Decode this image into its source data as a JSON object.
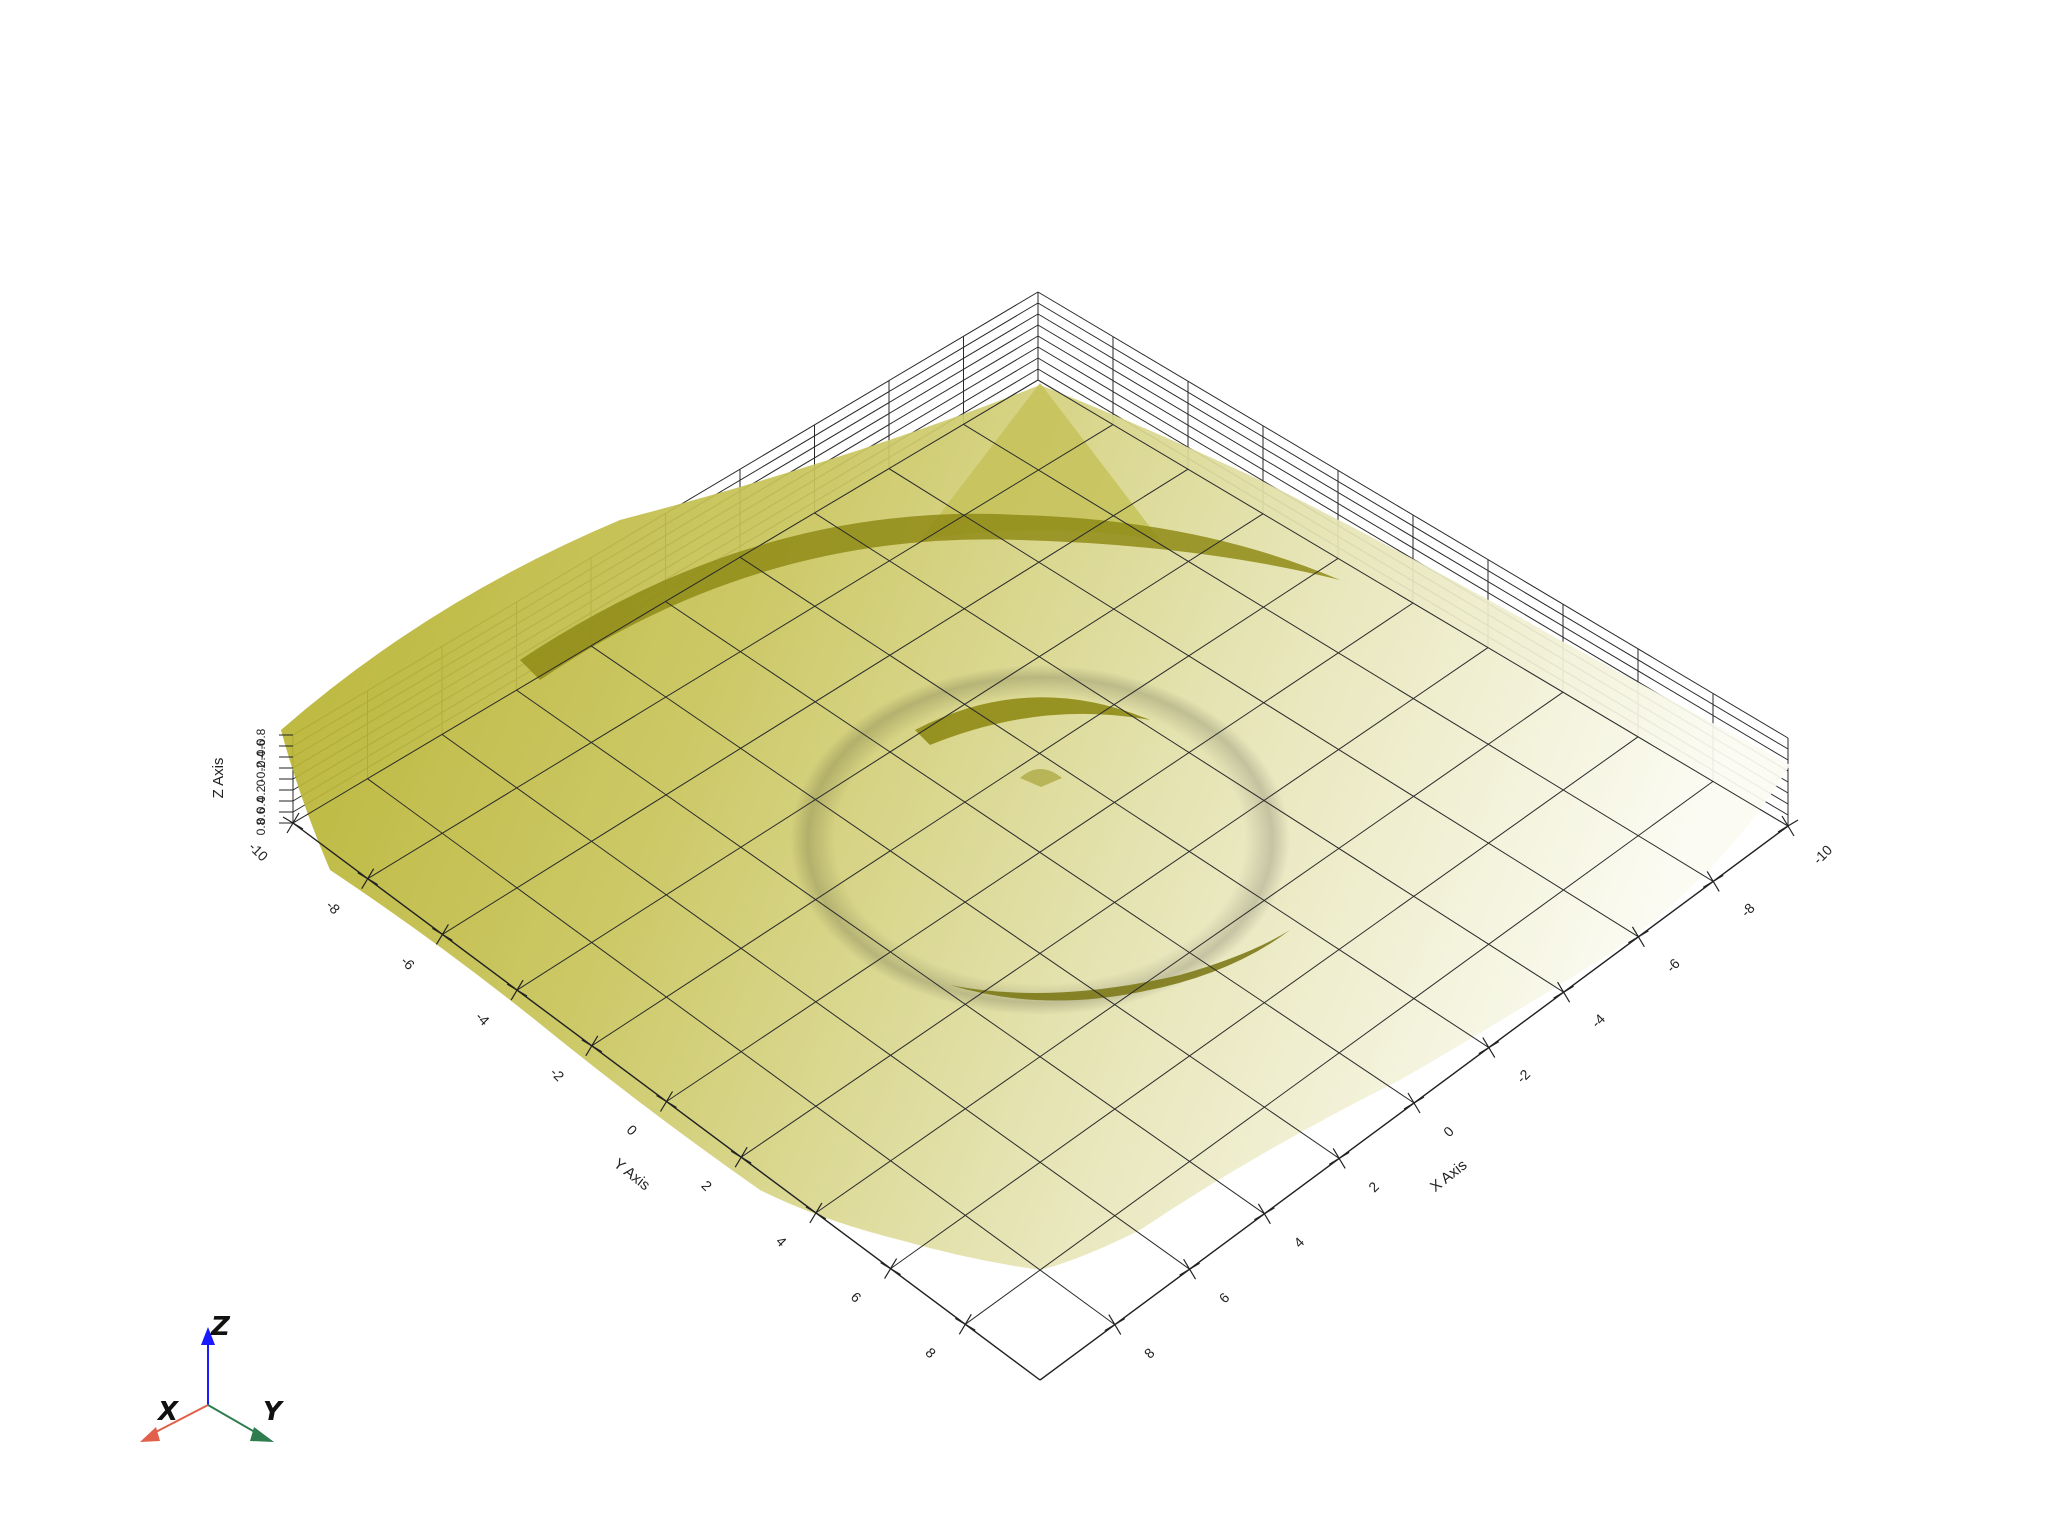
{
  "scene": {
    "background": "#ffffff",
    "surface_color": "#b9b52d",
    "grid_color": "#2a2a2a"
  },
  "axes": {
    "x_title": "X Axis",
    "y_title": "Y Axis",
    "z_title": "Z Axis",
    "x_ticks": [
      "-10",
      "-8",
      "-6",
      "-4",
      "-2",
      "0",
      "2",
      "4",
      "6",
      "8"
    ],
    "y_ticks": [
      "-10",
      "-8",
      "-6",
      "-4",
      "-2",
      "0",
      "2",
      "4",
      "6",
      "8"
    ],
    "z_ticks": [
      "-0.8",
      "-0.6",
      "-0.4",
      "-0.2",
      "0",
      "0.2",
      "0.4",
      "0.6",
      "0.8"
    ]
  },
  "orientation_widget": {
    "x_label": "X",
    "y_label": "Y",
    "z_label": "Z",
    "x_color": "#e0604a",
    "y_color": "#2e7d4f",
    "z_color": "#1a1aff"
  }
}
